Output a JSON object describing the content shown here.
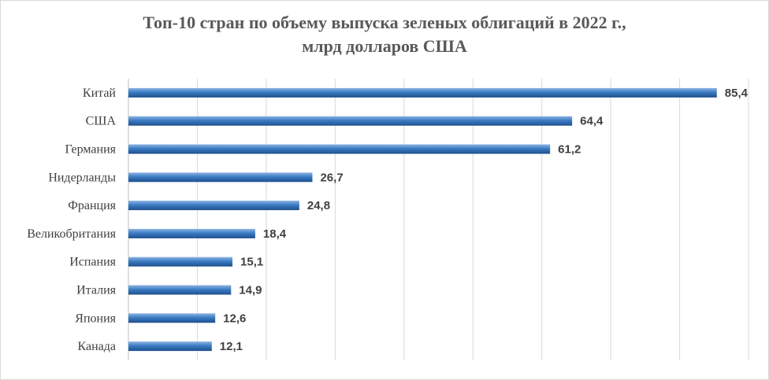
{
  "chart_data": {
    "type": "bar",
    "orientation": "horizontal",
    "title_line1": "Топ-10 стран по объему выпуска зеленых облигаций в 2022 г.,",
    "title_line2": "млрд долларов США",
    "categories": [
      "Китай",
      "США",
      "Германия",
      "Нидерланды",
      "Франция",
      "Великобритания",
      "Испания",
      "Италия",
      "Япония",
      "Канада"
    ],
    "values": [
      85.4,
      64.4,
      61.2,
      26.7,
      24.8,
      18.4,
      15.1,
      14.9,
      12.6,
      12.1
    ],
    "value_labels": [
      "85,4",
      "64,4",
      "61,2",
      "26,7",
      "24,8",
      "18,4",
      "15,1",
      "14,9",
      "12,6",
      "12,1"
    ],
    "xlim": [
      0,
      90
    ],
    "grid": true,
    "legend": false,
    "bar_color": "#2e6db0"
  }
}
